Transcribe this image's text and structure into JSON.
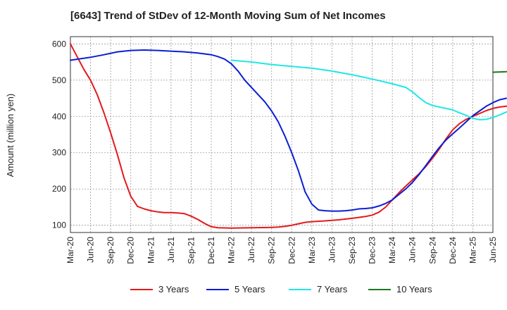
{
  "chart_data": {
    "type": "line",
    "title": "[6643]  Trend of StDev of 12-Month Moving Sum of Net Incomes",
    "ylabel": "Amount (million yen)",
    "xlabel": "",
    "ylim": [
      80,
      620
    ],
    "yticks": [
      100,
      200,
      300,
      400,
      500,
      600
    ],
    "x_ticks": [
      "Mar-20",
      "Jun-20",
      "Sep-20",
      "Dec-20",
      "Mar-21",
      "Jun-21",
      "Sep-21",
      "Dec-21",
      "Mar-22",
      "Jun-22",
      "Sep-22",
      "Dec-22",
      "Mar-23",
      "Jun-23",
      "Sep-23",
      "Dec-23",
      "Mar-24",
      "Jun-24",
      "Sep-24",
      "Dec-24",
      "Mar-25",
      "Jun-25"
    ],
    "grid": true,
    "legend_position": "bottom",
    "series": [
      {
        "name": "3 Years",
        "color": "#e31a1c",
        "points": [
          [
            0,
            600
          ],
          [
            2,
            530
          ],
          [
            3,
            500
          ],
          [
            4,
            460
          ],
          [
            5,
            410
          ],
          [
            6,
            355
          ],
          [
            7,
            295
          ],
          [
            8,
            230
          ],
          [
            9,
            180
          ],
          [
            10,
            152
          ],
          [
            11,
            145
          ],
          [
            12,
            140
          ],
          [
            13,
            137
          ],
          [
            14,
            135
          ],
          [
            15,
            135
          ],
          [
            16,
            134
          ],
          [
            17,
            132
          ],
          [
            18,
            125
          ],
          [
            19,
            116
          ],
          [
            20,
            105
          ],
          [
            21,
            96
          ],
          [
            22,
            93
          ],
          [
            24,
            92
          ],
          [
            27,
            93
          ],
          [
            30,
            94
          ],
          [
            31,
            95
          ],
          [
            32,
            97
          ],
          [
            33,
            100
          ],
          [
            34,
            104
          ],
          [
            35,
            108
          ],
          [
            36,
            110
          ],
          [
            38,
            112
          ],
          [
            40,
            115
          ],
          [
            42,
            119
          ],
          [
            44,
            124
          ],
          [
            45,
            128
          ],
          [
            46,
            136
          ],
          [
            47,
            150
          ],
          [
            48,
            170
          ],
          [
            49,
            190
          ],
          [
            50,
            208
          ],
          [
            51,
            225
          ],
          [
            52,
            242
          ],
          [
            53,
            262
          ],
          [
            54,
            285
          ],
          [
            55,
            310
          ],
          [
            56,
            338
          ],
          [
            57,
            363
          ],
          [
            58,
            380
          ],
          [
            59,
            392
          ],
          [
            60,
            400
          ],
          [
            61,
            408
          ],
          [
            62,
            416
          ],
          [
            63,
            422
          ],
          [
            64,
            426
          ],
          [
            65,
            428
          ],
          [
            66,
            430
          ]
        ]
      },
      {
        "name": "5 Years",
        "color": "#0a1ed6",
        "points": [
          [
            0,
            555
          ],
          [
            3,
            563
          ],
          [
            5,
            570
          ],
          [
            7,
            578
          ],
          [
            9,
            582
          ],
          [
            11,
            583
          ],
          [
            13,
            582
          ],
          [
            15,
            580
          ],
          [
            17,
            578
          ],
          [
            19,
            575
          ],
          [
            21,
            570
          ],
          [
            22,
            565
          ],
          [
            23,
            558
          ],
          [
            24,
            545
          ],
          [
            25,
            525
          ],
          [
            26,
            500
          ],
          [
            27,
            480
          ],
          [
            28,
            460
          ],
          [
            29,
            440
          ],
          [
            30,
            415
          ],
          [
            31,
            385
          ],
          [
            32,
            345
          ],
          [
            33,
            300
          ],
          [
            34,
            250
          ],
          [
            35,
            192
          ],
          [
            36,
            158
          ],
          [
            37,
            142
          ],
          [
            38,
            140
          ],
          [
            39,
            139
          ],
          [
            40,
            139
          ],
          [
            41,
            140
          ],
          [
            42,
            142
          ],
          [
            43,
            145
          ],
          [
            44,
            146
          ],
          [
            45,
            148
          ],
          [
            46,
            153
          ],
          [
            47,
            160
          ],
          [
            48,
            170
          ],
          [
            49,
            185
          ],
          [
            50,
            200
          ],
          [
            51,
            218
          ],
          [
            52,
            240
          ],
          [
            53,
            265
          ],
          [
            54,
            290
          ],
          [
            55,
            314
          ],
          [
            56,
            335
          ],
          [
            57,
            352
          ],
          [
            58,
            368
          ],
          [
            59,
            385
          ],
          [
            60,
            402
          ],
          [
            61,
            415
          ],
          [
            62,
            428
          ],
          [
            63,
            438
          ],
          [
            64,
            446
          ],
          [
            65,
            450
          ]
        ]
      },
      {
        "name": "7 Years",
        "color": "#22e6e6",
        "points": [
          [
            24,
            555
          ],
          [
            27,
            550
          ],
          [
            30,
            543
          ],
          [
            33,
            538
          ],
          [
            36,
            533
          ],
          [
            39,
            525
          ],
          [
            42,
            515
          ],
          [
            45,
            503
          ],
          [
            48,
            490
          ],
          [
            50,
            480
          ],
          [
            51,
            468
          ],
          [
            52,
            452
          ],
          [
            53,
            438
          ],
          [
            54,
            430
          ],
          [
            55,
            426
          ],
          [
            57,
            418
          ],
          [
            58,
            410
          ],
          [
            59,
            403
          ],
          [
            60,
            395
          ],
          [
            61,
            391
          ],
          [
            62,
            392
          ],
          [
            63,
            397
          ],
          [
            64,
            404
          ],
          [
            65,
            412
          ],
          [
            66,
            420
          ]
        ]
      },
      {
        "name": "10 Years",
        "color": "#1b7a1b",
        "points": [
          [
            63,
            522
          ],
          [
            66,
            524
          ]
        ]
      }
    ]
  }
}
